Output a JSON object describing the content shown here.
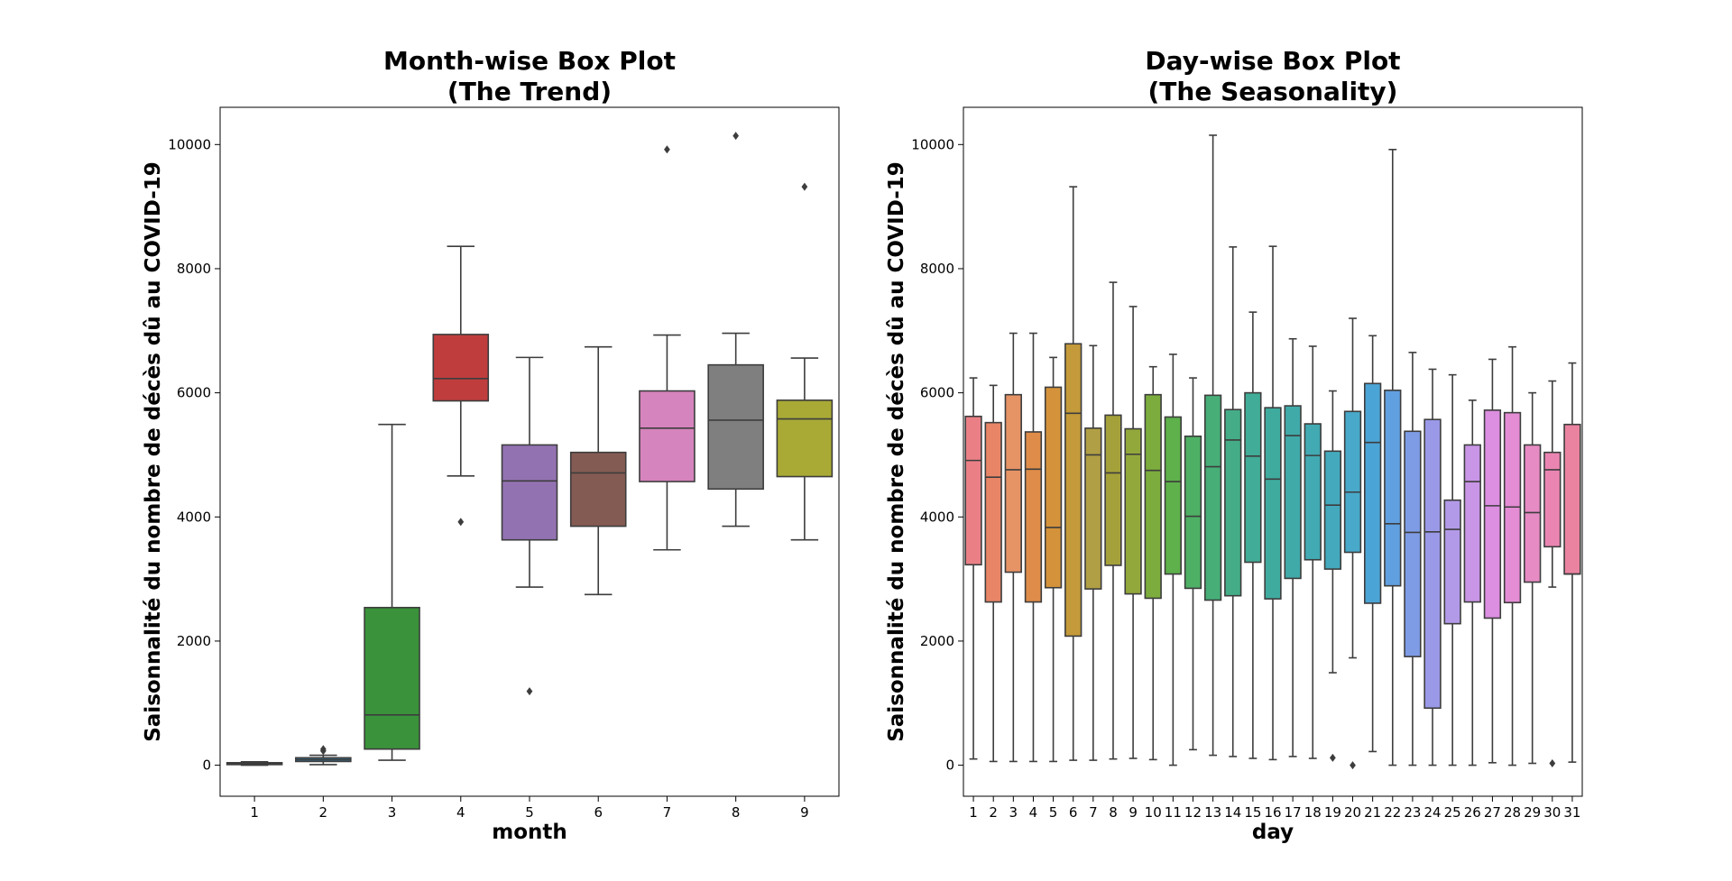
{
  "chart_data": [
    {
      "type": "box",
      "title": [
        "Month-wise Box Plot",
        "(The Trend)"
      ],
      "xlabel": "month",
      "ylabel": "Saisonnalité du nombre de décès dû au COVID-19",
      "ylim": [
        -500,
        10600
      ],
      "yticks": [
        0,
        2000,
        4000,
        6000,
        8000,
        10000
      ],
      "grid": false,
      "categories": [
        "1",
        "2",
        "3",
        "4",
        "5",
        "6",
        "7",
        "8",
        "9"
      ],
      "boxes": [
        {
          "whislo": 0,
          "q1": 10,
          "med": 25,
          "q3": 40,
          "whishi": 55,
          "fliers": [],
          "color": "#e1812c"
        },
        {
          "whislo": 10,
          "q1": 60,
          "med": 90,
          "q3": 120,
          "whishi": 160,
          "fliers": [
            230,
            260
          ],
          "color": "#3274a1"
        },
        {
          "whislo": 80,
          "q1": 260,
          "med": 810,
          "q3": 2540,
          "whishi": 5490,
          "fliers": [],
          "color": "#3a923a"
        },
        {
          "whislo": 4660,
          "q1": 5870,
          "med": 6230,
          "q3": 6940,
          "whishi": 8360,
          "fliers": [
            3920
          ],
          "color": "#c03d3e"
        },
        {
          "whislo": 2870,
          "q1": 3630,
          "med": 4580,
          "q3": 5160,
          "whishi": 6570,
          "fliers": [
            1190
          ],
          "color": "#9372b2"
        },
        {
          "whislo": 2750,
          "q1": 3850,
          "med": 4710,
          "q3": 5040,
          "whishi": 6740,
          "fliers": [],
          "color": "#845b53"
        },
        {
          "whislo": 3470,
          "q1": 4570,
          "med": 5430,
          "q3": 6030,
          "whishi": 6930,
          "fliers": [
            9920
          ],
          "color": "#d684bd"
        },
        {
          "whislo": 3850,
          "q1": 4450,
          "med": 5560,
          "q3": 6450,
          "whishi": 6960,
          "fliers": [
            10140
          ],
          "color": "#7f7f7f"
        },
        {
          "whislo": 3630,
          "q1": 4650,
          "med": 5580,
          "q3": 5880,
          "whishi": 6560,
          "fliers": [
            9320
          ],
          "color": "#a9aa35"
        }
      ]
    },
    {
      "type": "box",
      "title": [
        "Day-wise Box Plot",
        "(The Seasonality)"
      ],
      "xlabel": "day",
      "ylabel": "Saisonnalité du nombre de décès dû au COVID-19",
      "ylim": [
        -500,
        10600
      ],
      "yticks": [
        0,
        2000,
        4000,
        6000,
        8000,
        10000
      ],
      "grid": false,
      "categories": [
        "1",
        "2",
        "3",
        "4",
        "5",
        "6",
        "7",
        "8",
        "9",
        "10",
        "11",
        "12",
        "13",
        "14",
        "15",
        "16",
        "17",
        "18",
        "19",
        "20",
        "21",
        "22",
        "23",
        "24",
        "25",
        "26",
        "27",
        "28",
        "29",
        "30",
        "31"
      ],
      "boxes": [
        {
          "whislo": 100,
          "q1": 3230,
          "med": 4910,
          "q3": 5620,
          "whishi": 6240,
          "fliers": [],
          "color": "#ea8086"
        },
        {
          "whislo": 60,
          "q1": 2630,
          "med": 4640,
          "q3": 5520,
          "whishi": 6120,
          "fliers": [],
          "color": "#e88567"
        },
        {
          "whislo": 60,
          "q1": 3110,
          "med": 4760,
          "q3": 5970,
          "whishi": 6960,
          "fliers": [],
          "color": "#e69366"
        },
        {
          "whislo": 60,
          "q1": 2630,
          "med": 4770,
          "q3": 5370,
          "whishi": 6960,
          "fliers": [],
          "color": "#df8c4a"
        },
        {
          "whislo": 60,
          "q1": 2860,
          "med": 3830,
          "q3": 6090,
          "whishi": 6570,
          "fliers": [],
          "color": "#d4933b"
        },
        {
          "whislo": 80,
          "q1": 2080,
          "med": 5670,
          "q3": 6790,
          "whishi": 9320,
          "fliers": [],
          "color": "#c49a3a"
        },
        {
          "whislo": 80,
          "q1": 2840,
          "med": 5000,
          "q3": 5430,
          "whishi": 6760,
          "fliers": [],
          "color": "#b19f45"
        },
        {
          "whislo": 100,
          "q1": 3220,
          "med": 4710,
          "q3": 5640,
          "whishi": 7780,
          "fliers": [],
          "color": "#a5a13a"
        },
        {
          "whislo": 110,
          "q1": 2760,
          "med": 5010,
          "q3": 5420,
          "whishi": 7390,
          "fliers": [],
          "color": "#93a83b"
        },
        {
          "whislo": 90,
          "q1": 2690,
          "med": 4750,
          "q3": 5970,
          "whishi": 6420,
          "fliers": [],
          "color": "#7cac3d"
        },
        {
          "whislo": 0,
          "q1": 3080,
          "med": 4570,
          "q3": 5610,
          "whishi": 6620,
          "fliers": [],
          "color": "#5eb14b"
        },
        {
          "whislo": 250,
          "q1": 2850,
          "med": 4010,
          "q3": 5300,
          "whishi": 6240,
          "fliers": [],
          "color": "#4eb065"
        },
        {
          "whislo": 160,
          "q1": 2660,
          "med": 4810,
          "q3": 5960,
          "whishi": 10150,
          "fliers": [],
          "color": "#47ae78"
        },
        {
          "whislo": 140,
          "q1": 2730,
          "med": 5240,
          "q3": 5730,
          "whishi": 8350,
          "fliers": [],
          "color": "#44ad88"
        },
        {
          "whislo": 110,
          "q1": 3270,
          "med": 4980,
          "q3": 6000,
          "whishi": 7300,
          "fliers": [],
          "color": "#41ac97"
        },
        {
          "whislo": 90,
          "q1": 2680,
          "med": 4610,
          "q3": 5760,
          "whishi": 8360,
          "fliers": [],
          "color": "#3fab9e"
        },
        {
          "whislo": 140,
          "q1": 3010,
          "med": 5310,
          "q3": 5790,
          "whishi": 6870,
          "fliers": [],
          "color": "#40aaa9"
        },
        {
          "whislo": 110,
          "q1": 3310,
          "med": 4990,
          "q3": 5500,
          "whishi": 6750,
          "fliers": [],
          "color": "#42aab2"
        },
        {
          "whislo": 1490,
          "q1": 3160,
          "med": 4190,
          "q3": 5060,
          "whishi": 6030,
          "fliers": [
            120
          ],
          "color": "#44a9bc"
        },
        {
          "whislo": 1730,
          "q1": 3430,
          "med": 4400,
          "q3": 5700,
          "whishi": 7200,
          "fliers": [
            0
          ],
          "color": "#48a9ca"
        },
        {
          "whislo": 220,
          "q1": 2610,
          "med": 5200,
          "q3": 6150,
          "whishi": 6920,
          "fliers": [],
          "color": "#4ba4d6"
        },
        {
          "whislo": 0,
          "q1": 2890,
          "med": 3890,
          "q3": 6040,
          "whishi": 9920,
          "fliers": [],
          "color": "#61a0e0"
        },
        {
          "whislo": 0,
          "q1": 1750,
          "med": 3750,
          "q3": 5380,
          "whishi": 6650,
          "fliers": [],
          "color": "#7e9ce6"
        },
        {
          "whislo": 0,
          "q1": 920,
          "med": 3760,
          "q3": 5570,
          "whishi": 6380,
          "fliers": [],
          "color": "#9a99e8"
        },
        {
          "whislo": 0,
          "q1": 2280,
          "med": 3800,
          "q3": 4270,
          "whishi": 6290,
          "fliers": [],
          "color": "#b39ae8"
        },
        {
          "whislo": 0,
          "q1": 2630,
          "med": 4570,
          "q3": 5160,
          "whishi": 5880,
          "fliers": [],
          "color": "#c995e6"
        },
        {
          "whislo": 40,
          "q1": 2370,
          "med": 4180,
          "q3": 5720,
          "whishi": 6540,
          "fliers": [],
          "color": "#dc8ee0"
        },
        {
          "whislo": 0,
          "q1": 2620,
          "med": 4160,
          "q3": 5680,
          "whishi": 6740,
          "fliers": [],
          "color": "#e48cd4"
        },
        {
          "whislo": 30,
          "q1": 2950,
          "med": 4070,
          "q3": 5160,
          "whishi": 6000,
          "fliers": [],
          "color": "#e78bc4"
        },
        {
          "whislo": 2870,
          "q1": 3520,
          "med": 4760,
          "q3": 5040,
          "whishi": 6190,
          "fliers": [
            30
          ],
          "color": "#ea85b2"
        },
        {
          "whislo": 50,
          "q1": 3080,
          "med": 3080,
          "q3": 5490,
          "whishi": 6480,
          "fliers": [],
          "color": "#ea83a0"
        }
      ]
    }
  ]
}
